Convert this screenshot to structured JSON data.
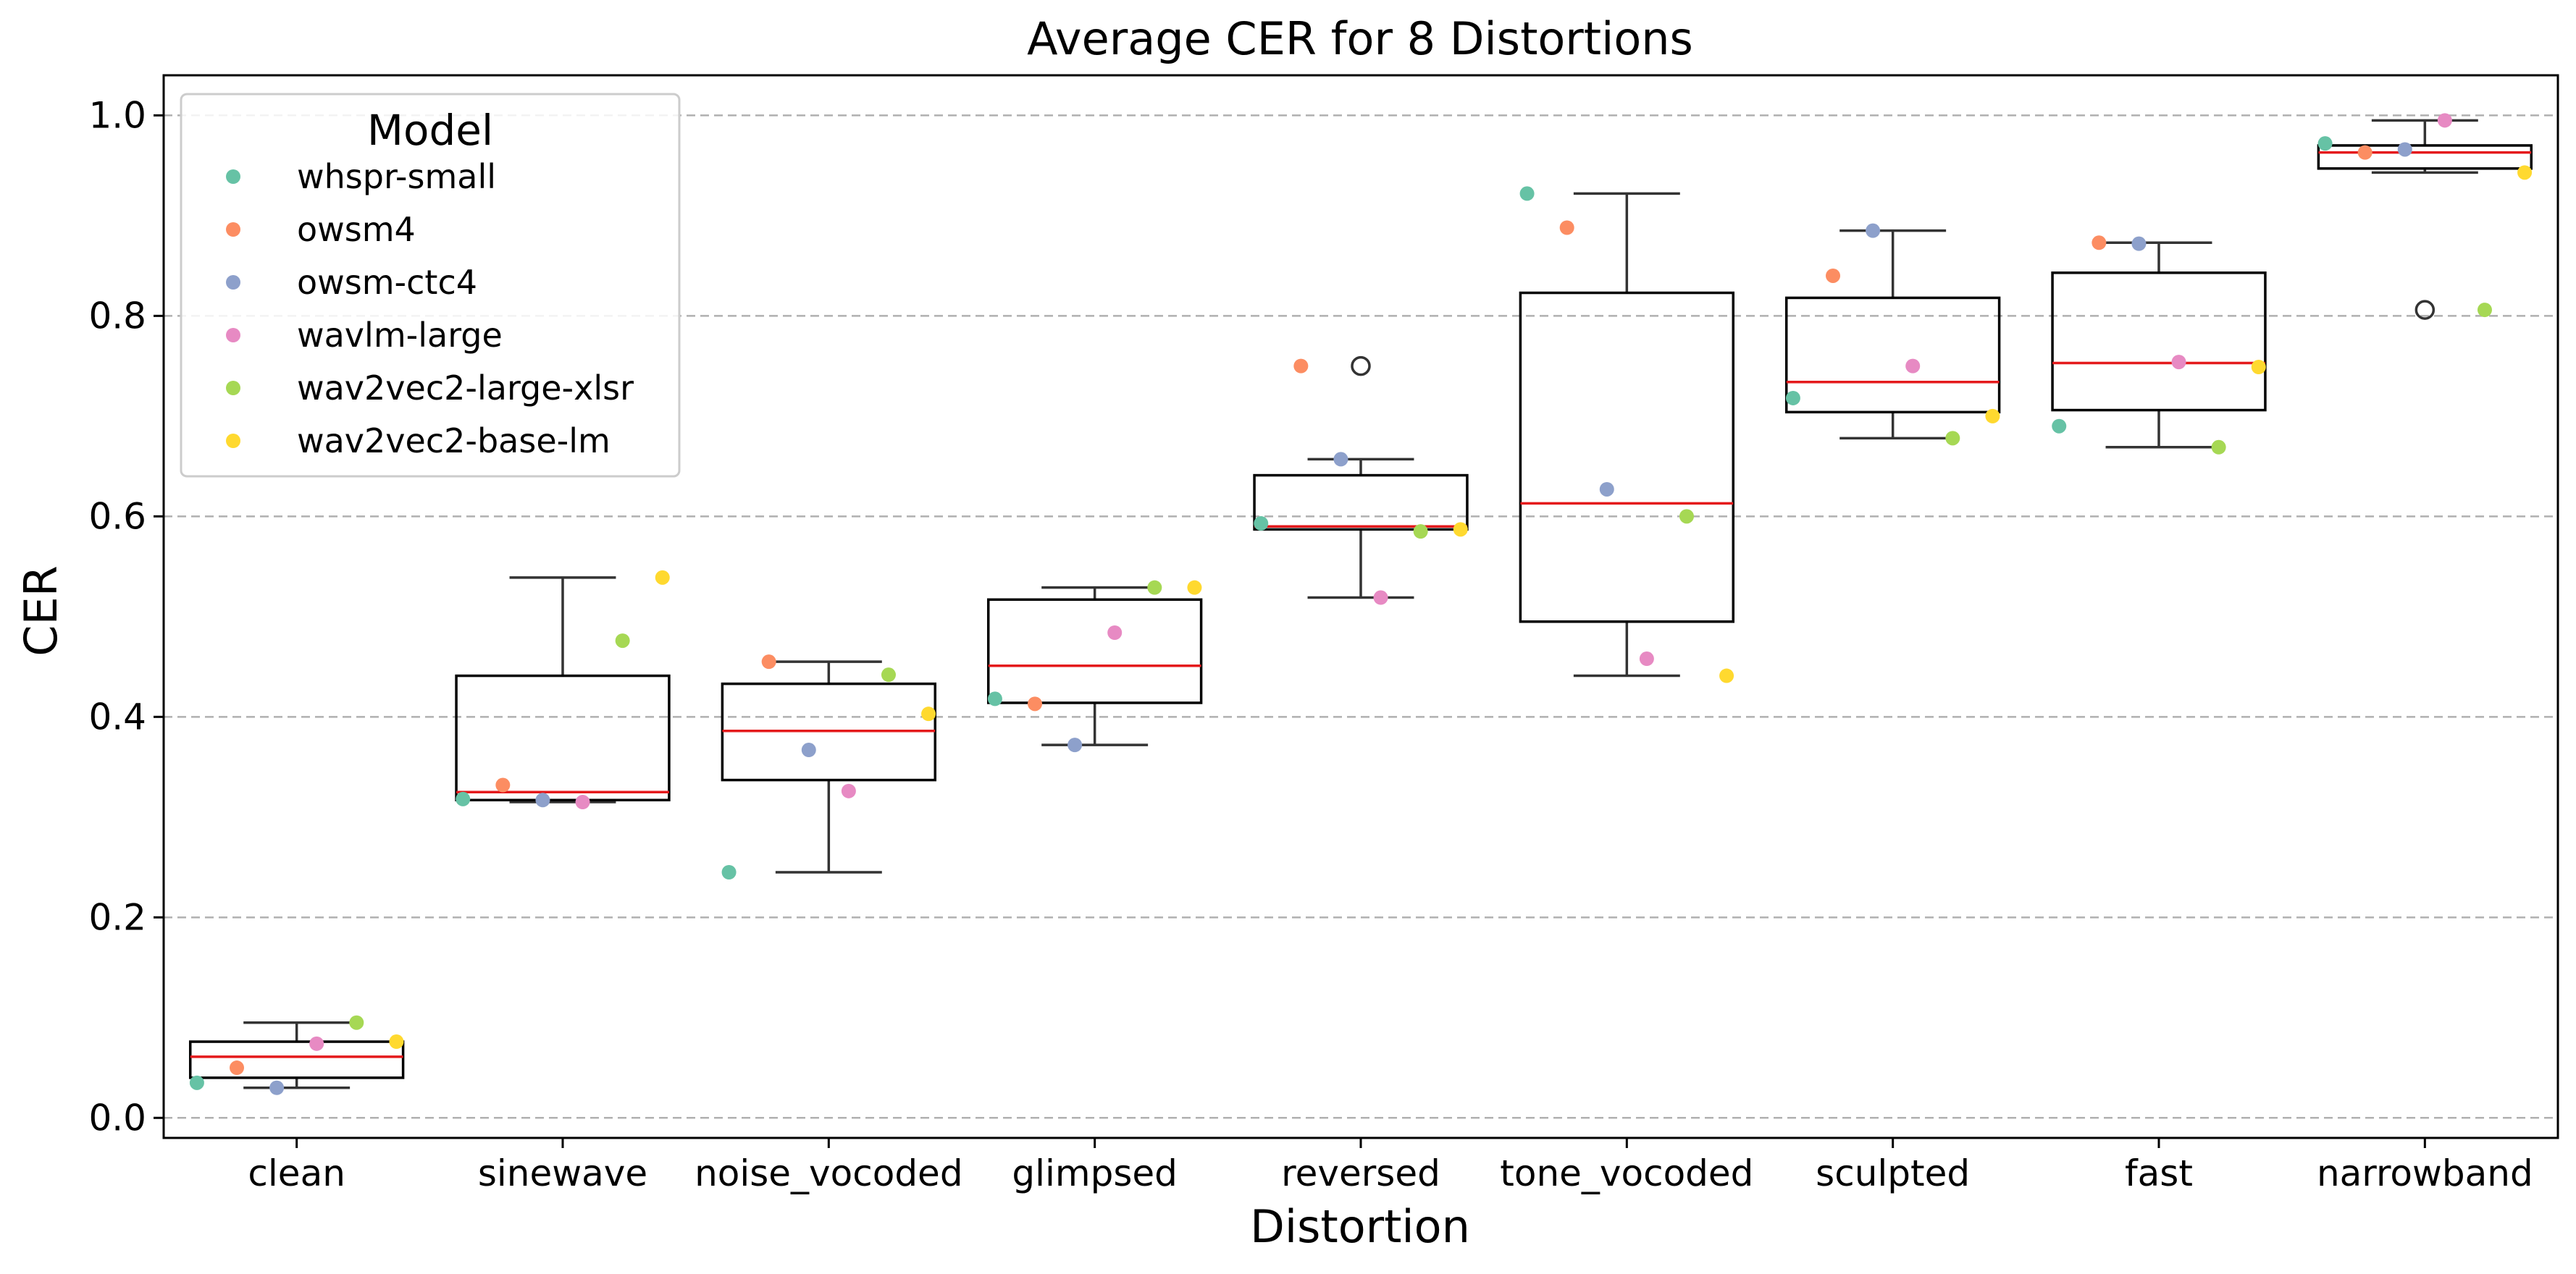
{
  "chart_data": {
    "type": "box",
    "title": "Average CER for 8 Distortions",
    "xlabel": "Distortion",
    "ylabel": "CER",
    "ylim": [
      -0.02,
      1.04
    ],
    "yticks": [
      0.0,
      0.2,
      0.4,
      0.6,
      0.8,
      1.0
    ],
    "grid": "y-dashed",
    "legend": {
      "title": "Model",
      "placement": "top-left",
      "entries": [
        {
          "name": "whspr-small",
          "color": "#66c2a5"
        },
        {
          "name": "owsm4",
          "color": "#fc8d62"
        },
        {
          "name": "owsm-ctc4",
          "color": "#8da0cb"
        },
        {
          "name": "wavlm-large",
          "color": "#e78ac3"
        },
        {
          "name": "wav2vec2-large-xlsr",
          "color": "#a6d854"
        },
        {
          "name": "wav2vec2-base-lm",
          "color": "#ffd92f"
        }
      ]
    },
    "categories": [
      "clean",
      "sinewave",
      "noise_vocoded",
      "glimpsed",
      "reversed",
      "tone_vocoded",
      "sculpted",
      "fast",
      "narrowband"
    ],
    "boxes": [
      {
        "whislo": 0.03,
        "q1": 0.04,
        "med": 0.061,
        "q3": 0.076,
        "whishi": 0.095,
        "fliers": []
      },
      {
        "whislo": 0.315,
        "q1": 0.317,
        "med": 0.325,
        "q3": 0.441,
        "whishi": 0.539,
        "fliers": []
      },
      {
        "whislo": 0.245,
        "q1": 0.337,
        "med": 0.386,
        "q3": 0.433,
        "whishi": 0.455,
        "fliers": []
      },
      {
        "whislo": 0.372,
        "q1": 0.414,
        "med": 0.451,
        "q3": 0.517,
        "whishi": 0.529,
        "fliers": []
      },
      {
        "whislo": 0.519,
        "q1": 0.587,
        "med": 0.59,
        "q3": 0.641,
        "whishi": 0.657,
        "fliers": [
          0.75
        ]
      },
      {
        "whislo": 0.441,
        "q1": 0.495,
        "med": 0.613,
        "q3": 0.823,
        "whishi": 0.922,
        "fliers": []
      },
      {
        "whislo": 0.678,
        "q1": 0.704,
        "med": 0.734,
        "q3": 0.818,
        "whishi": 0.885,
        "fliers": []
      },
      {
        "whislo": 0.669,
        "q1": 0.706,
        "med": 0.753,
        "q3": 0.843,
        "whishi": 0.873,
        "fliers": []
      },
      {
        "whislo": 0.943,
        "q1": 0.947,
        "med": 0.963,
        "q3": 0.97,
        "whishi": 0.995,
        "fliers": [
          0.806
        ]
      }
    ],
    "points": {
      "whspr-small": [
        0.035,
        0.318,
        0.245,
        0.418,
        0.593,
        0.922,
        0.718,
        0.69,
        0.972
      ],
      "owsm4": [
        0.05,
        0.332,
        0.455,
        0.413,
        0.75,
        0.888,
        0.84,
        0.873,
        0.963
      ],
      "owsm-ctc4": [
        0.03,
        0.317,
        0.367,
        0.372,
        0.657,
        0.627,
        0.885,
        0.872,
        0.966
      ],
      "wavlm-large": [
        0.074,
        0.315,
        0.326,
        0.484,
        0.519,
        0.458,
        0.75,
        0.754,
        0.995
      ],
      "wav2vec2-large-xlsr": [
        0.095,
        0.476,
        0.442,
        0.529,
        0.585,
        0.6,
        0.678,
        0.669,
        0.806
      ],
      "wav2vec2-base-lm": [
        0.076,
        0.539,
        0.403,
        0.529,
        0.587,
        0.441,
        0.7,
        0.749,
        0.943
      ]
    }
  }
}
